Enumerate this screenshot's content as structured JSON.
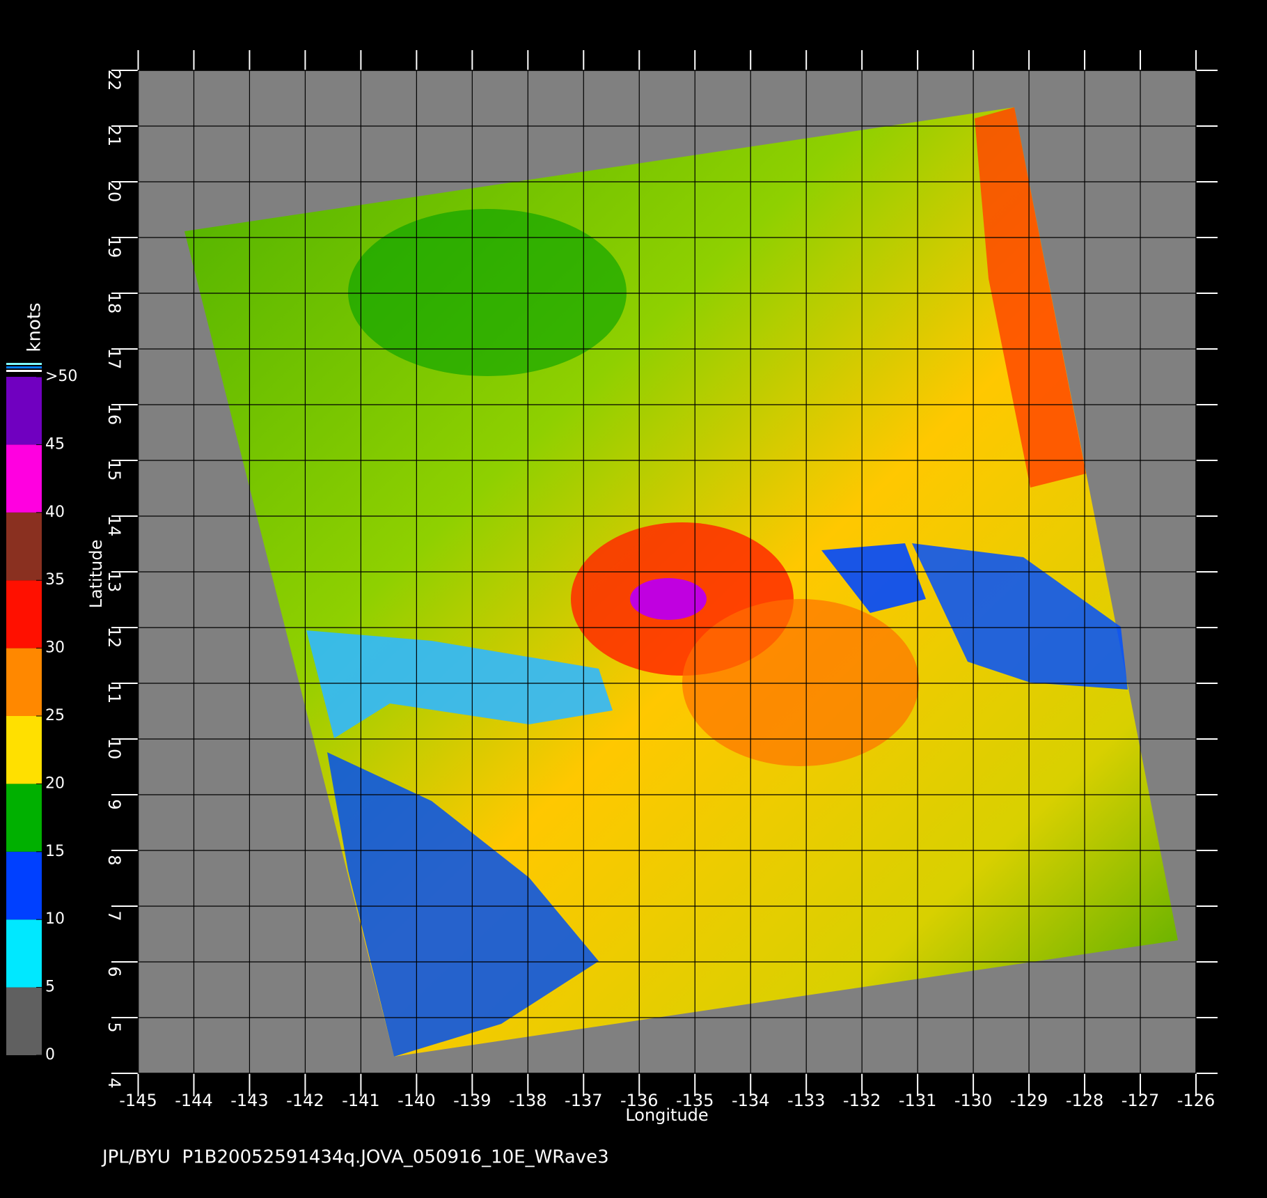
{
  "chart_data": {
    "type": "map",
    "xlabel": "Longitude",
    "ylabel": "Latitude",
    "footer": "JPL/BYU  P1B20052591434q.JOVA_050916_10E_WRave3",
    "xlim": [
      -145,
      -126
    ],
    "ylim": [
      4,
      22
    ],
    "xticks": [
      -145,
      -144,
      -143,
      -142,
      -141,
      -140,
      -139,
      -138,
      -137,
      -136,
      -135,
      -134,
      -133,
      -132,
      -131,
      -130,
      -129,
      -128,
      -127,
      -126
    ],
    "yticks": [
      4,
      5,
      6,
      7,
      8,
      9,
      10,
      11,
      12,
      13,
      14,
      15,
      16,
      17,
      18,
      19,
      20,
      21,
      22
    ],
    "grid": true,
    "background": "#808080",
    "colorbar": {
      "title": "knots",
      "lim": [
        0,
        50
      ],
      "ticks": [
        0,
        5,
        10,
        15,
        20,
        25,
        30,
        35,
        40,
        45,
        {
          "value": 50,
          "label": ">50"
        }
      ],
      "colors": [
        "#606060",
        "#00e8ff",
        "#0040ff",
        "#00b000",
        "#ffe000",
        "#ff8800",
        "#ff1000",
        "#8a3020",
        "#ff00e0",
        "#7000c0"
      ]
    }
  }
}
